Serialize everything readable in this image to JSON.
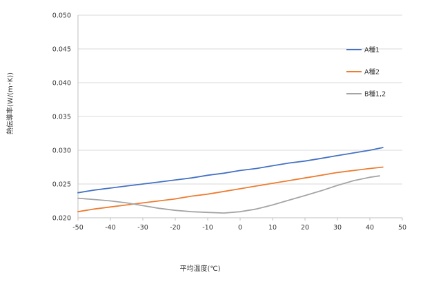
{
  "chart_data": {
    "type": "line",
    "title": "",
    "xlabel": "平均温度(℃)",
    "ylabel": "熱伝導率(W/(m･K))",
    "xlim": [
      -50,
      50
    ],
    "ylim": [
      0.02,
      0.05
    ],
    "x_ticks": [
      "-50",
      "-40",
      "-30",
      "-20",
      "-10",
      "0",
      "10",
      "20",
      "30",
      "40",
      "50"
    ],
    "y_ticks": [
      "0.020",
      "0.025",
      "0.030",
      "0.035",
      "0.040",
      "0.045",
      "0.050"
    ],
    "grid": "horizontal",
    "legend_position": "right",
    "series": [
      {
        "name": "A種1",
        "color": "#4472C4",
        "x": [
          -50,
          -45,
          -40,
          -35,
          -30,
          -25,
          -20,
          -15,
          -10,
          -5,
          0,
          5,
          10,
          15,
          20,
          25,
          30,
          35,
          40,
          44
        ],
        "y": [
          0.0237,
          0.0241,
          0.0244,
          0.0247,
          0.025,
          0.0253,
          0.0256,
          0.0259,
          0.0263,
          0.0266,
          0.027,
          0.0273,
          0.0277,
          0.0281,
          0.0284,
          0.0288,
          0.0292,
          0.0296,
          0.03,
          0.0304
        ]
      },
      {
        "name": "A種2",
        "color": "#ED7D31",
        "x": [
          -50,
          -45,
          -40,
          -35,
          -30,
          -25,
          -20,
          -15,
          -10,
          -5,
          0,
          5,
          10,
          15,
          20,
          25,
          30,
          35,
          40,
          44
        ],
        "y": [
          0.0209,
          0.0213,
          0.0216,
          0.0219,
          0.0222,
          0.0225,
          0.0228,
          0.0232,
          0.0235,
          0.0239,
          0.0243,
          0.0247,
          0.0251,
          0.0255,
          0.0259,
          0.0263,
          0.0267,
          0.027,
          0.0273,
          0.0275
        ]
      },
      {
        "name": "B種1,2",
        "color": "#A5A5A5",
        "x": [
          -50,
          -45,
          -40,
          -35,
          -30,
          -25,
          -20,
          -15,
          -10,
          -5,
          0,
          5,
          10,
          15,
          20,
          25,
          30,
          35,
          40,
          43
        ],
        "y": [
          0.0229,
          0.0227,
          0.0225,
          0.0222,
          0.0218,
          0.0214,
          0.0211,
          0.0209,
          0.0208,
          0.0207,
          0.0209,
          0.0213,
          0.0219,
          0.0226,
          0.0233,
          0.024,
          0.0248,
          0.0255,
          0.026,
          0.0262
        ]
      }
    ]
  }
}
